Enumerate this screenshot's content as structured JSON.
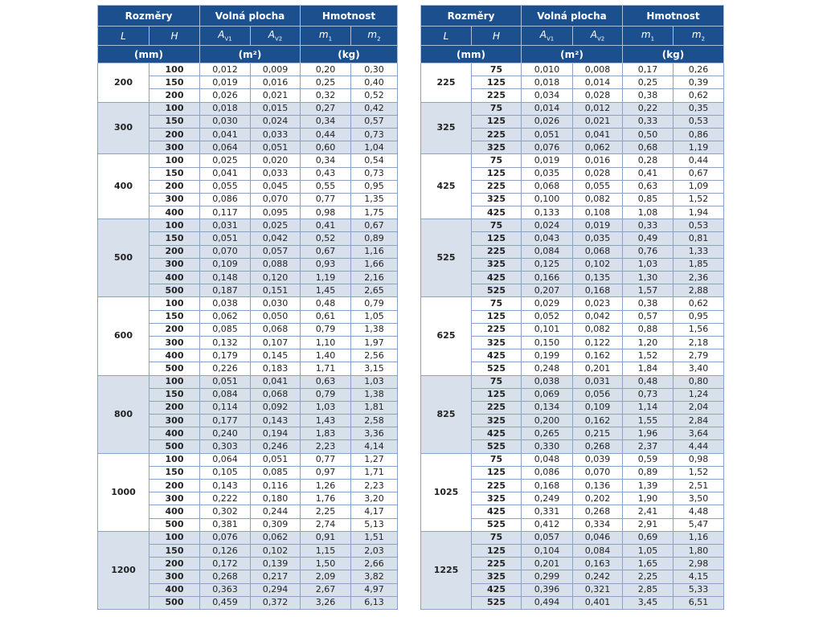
{
  "tables": [
    {
      "header": {
        "groups": [
          "Rozměry",
          "Volná plocha",
          "Hmotnost"
        ],
        "columns": [
          {
            "symbol": "L"
          },
          {
            "symbol": "H"
          },
          {
            "symbol": "A",
            "sub": "V1"
          },
          {
            "symbol": "A",
            "sub": "V2"
          },
          {
            "symbol": "m",
            "sub": "1"
          },
          {
            "symbol": "m",
            "sub": "2"
          }
        ],
        "units": [
          "(mm)",
          "(m²)",
          "(kg)"
        ]
      },
      "groups": [
        {
          "L": "200",
          "rows": [
            [
              "100",
              "0,012",
              "0,009",
              "0,20",
              "0,30"
            ],
            [
              "150",
              "0,019",
              "0,016",
              "0,25",
              "0,40"
            ],
            [
              "200",
              "0,026",
              "0,021",
              "0,32",
              "0,52"
            ]
          ]
        },
        {
          "L": "300",
          "rows": [
            [
              "100",
              "0,018",
              "0,015",
              "0,27",
              "0,42"
            ],
            [
              "150",
              "0,030",
              "0,024",
              "0,34",
              "0,57"
            ],
            [
              "200",
              "0,041",
              "0,033",
              "0,44",
              "0,73"
            ],
            [
              "300",
              "0,064",
              "0,051",
              "0,60",
              "1,04"
            ]
          ]
        },
        {
          "L": "400",
          "rows": [
            [
              "100",
              "0,025",
              "0,020",
              "0,34",
              "0,54"
            ],
            [
              "150",
              "0,041",
              "0,033",
              "0,43",
              "0,73"
            ],
            [
              "200",
              "0,055",
              "0,045",
              "0,55",
              "0,95"
            ],
            [
              "300",
              "0,086",
              "0,070",
              "0,77",
              "1,35"
            ],
            [
              "400",
              "0,117",
              "0,095",
              "0,98",
              "1,75"
            ]
          ]
        },
        {
          "L": "500",
          "rows": [
            [
              "100",
              "0,031",
              "0,025",
              "0,41",
              "0,67"
            ],
            [
              "150",
              "0,051",
              "0,042",
              "0,52",
              "0,89"
            ],
            [
              "200",
              "0,070",
              "0,057",
              "0,67",
              "1,16"
            ],
            [
              "300",
              "0,109",
              "0,088",
              "0,93",
              "1,66"
            ],
            [
              "400",
              "0,148",
              "0,120",
              "1,19",
              "2,16"
            ],
            [
              "500",
              "0,187",
              "0,151",
              "1,45",
              "2,65"
            ]
          ]
        },
        {
          "L": "600",
          "rows": [
            [
              "100",
              "0,038",
              "0,030",
              "0,48",
              "0,79"
            ],
            [
              "150",
              "0,062",
              "0,050",
              "0,61",
              "1,05"
            ],
            [
              "200",
              "0,085",
              "0,068",
              "0,79",
              "1,38"
            ],
            [
              "300",
              "0,132",
              "0,107",
              "1,10",
              "1,97"
            ],
            [
              "400",
              "0,179",
              "0,145",
              "1,40",
              "2,56"
            ],
            [
              "500",
              "0,226",
              "0,183",
              "1,71",
              "3,15"
            ]
          ]
        },
        {
          "L": "800",
          "rows": [
            [
              "100",
              "0,051",
              "0,041",
              "0,63",
              "1,03"
            ],
            [
              "150",
              "0,084",
              "0,068",
              "0,79",
              "1,38"
            ],
            [
              "200",
              "0,114",
              "0,092",
              "1,03",
              "1,81"
            ],
            [
              "300",
              "0,177",
              "0,143",
              "1,43",
              "2,58"
            ],
            [
              "400",
              "0,240",
              "0,194",
              "1,83",
              "3,36"
            ],
            [
              "500",
              "0,303",
              "0,246",
              "2,23",
              "4,14"
            ]
          ]
        },
        {
          "L": "1000",
          "rows": [
            [
              "100",
              "0,064",
              "0,051",
              "0,77",
              "1,27"
            ],
            [
              "150",
              "0,105",
              "0,085",
              "0,97",
              "1,71"
            ],
            [
              "200",
              "0,143",
              "0,116",
              "1,26",
              "2,23"
            ],
            [
              "300",
              "0,222",
              "0,180",
              "1,76",
              "3,20"
            ],
            [
              "400",
              "0,302",
              "0,244",
              "2,25",
              "4,17"
            ],
            [
              "500",
              "0,381",
              "0,309",
              "2,74",
              "5,13"
            ]
          ]
        },
        {
          "L": "1200",
          "rows": [
            [
              "100",
              "0,076",
              "0,062",
              "0,91",
              "1,51"
            ],
            [
              "150",
              "0,126",
              "0,102",
              "1,15",
              "2,03"
            ],
            [
              "200",
              "0,172",
              "0,139",
              "1,50",
              "2,66"
            ],
            [
              "300",
              "0,268",
              "0,217",
              "2,09",
              "3,82"
            ],
            [
              "400",
              "0,363",
              "0,294",
              "2,67",
              "4,97"
            ],
            [
              "500",
              "0,459",
              "0,372",
              "3,26",
              "6,13"
            ]
          ]
        }
      ]
    },
    {
      "header": {
        "groups": [
          "Rozměry",
          "Volná plocha",
          "Hmotnost"
        ],
        "columns": [
          {
            "symbol": "L"
          },
          {
            "symbol": "H"
          },
          {
            "symbol": "A",
            "sub": "V1"
          },
          {
            "symbol": "A",
            "sub": "V2"
          },
          {
            "symbol": "m",
            "sub": "1"
          },
          {
            "symbol": "m",
            "sub": "2"
          }
        ],
        "units": [
          "(mm)",
          "(m²)",
          "(kg)"
        ]
      },
      "groups": [
        {
          "L": "225",
          "rows": [
            [
              "75",
              "0,010",
              "0,008",
              "0,17",
              "0,26"
            ],
            [
              "125",
              "0,018",
              "0,014",
              "0,25",
              "0,39"
            ],
            [
              "225",
              "0,034",
              "0,028",
              "0,38",
              "0,62"
            ]
          ]
        },
        {
          "L": "325",
          "rows": [
            [
              "75",
              "0,014",
              "0,012",
              "0,22",
              "0,35"
            ],
            [
              "125",
              "0,026",
              "0,021",
              "0,33",
              "0,53"
            ],
            [
              "225",
              "0,051",
              "0,041",
              "0,50",
              "0,86"
            ],
            [
              "325",
              "0,076",
              "0,062",
              "0,68",
              "1,19"
            ]
          ]
        },
        {
          "L": "425",
          "rows": [
            [
              "75",
              "0,019",
              "0,016",
              "0,28",
              "0,44"
            ],
            [
              "125",
              "0,035",
              "0,028",
              "0,41",
              "0,67"
            ],
            [
              "225",
              "0,068",
              "0,055",
              "0,63",
              "1,09"
            ],
            [
              "325",
              "0,100",
              "0,082",
              "0,85",
              "1,52"
            ],
            [
              "425",
              "0,133",
              "0,108",
              "1,08",
              "1,94"
            ]
          ]
        },
        {
          "L": "525",
          "rows": [
            [
              "75",
              "0,024",
              "0,019",
              "0,33",
              "0,53"
            ],
            [
              "125",
              "0,043",
              "0,035",
              "0,49",
              "0,81"
            ],
            [
              "225",
              "0,084",
              "0,068",
              "0,76",
              "1,33"
            ],
            [
              "325",
              "0,125",
              "0,102",
              "1,03",
              "1,85"
            ],
            [
              "425",
              "0,166",
              "0,135",
              "1,30",
              "2,36"
            ],
            [
              "525",
              "0,207",
              "0,168",
              "1,57",
              "2,88"
            ]
          ]
        },
        {
          "L": "625",
          "rows": [
            [
              "75",
              "0,029",
              "0,023",
              "0,38",
              "0,62"
            ],
            [
              "125",
              "0,052",
              "0,042",
              "0,57",
              "0,95"
            ],
            [
              "225",
              "0,101",
              "0,082",
              "0,88",
              "1,56"
            ],
            [
              "325",
              "0,150",
              "0,122",
              "1,20",
              "2,18"
            ],
            [
              "425",
              "0,199",
              "0,162",
              "1,52",
              "2,79"
            ],
            [
              "525",
              "0,248",
              "0,201",
              "1,84",
              "3,40"
            ]
          ]
        },
        {
          "L": "825",
          "rows": [
            [
              "75",
              "0,038",
              "0,031",
              "0,48",
              "0,80"
            ],
            [
              "125",
              "0,069",
              "0,056",
              "0,73",
              "1,24"
            ],
            [
              "225",
              "0,134",
              "0,109",
              "1,14",
              "2,04"
            ],
            [
              "325",
              "0,200",
              "0,162",
              "1,55",
              "2,84"
            ],
            [
              "425",
              "0,265",
              "0,215",
              "1,96",
              "3,64"
            ],
            [
              "525",
              "0,330",
              "0,268",
              "2,37",
              "4,44"
            ]
          ]
        },
        {
          "L": "1025",
          "rows": [
            [
              "75",
              "0,048",
              "0,039",
              "0,59",
              "0,98"
            ],
            [
              "125",
              "0,086",
              "0,070",
              "0,89",
              "1,52"
            ],
            [
              "225",
              "0,168",
              "0,136",
              "1,39",
              "2,51"
            ],
            [
              "325",
              "0,249",
              "0,202",
              "1,90",
              "3,50"
            ],
            [
              "425",
              "0,331",
              "0,268",
              "2,41",
              "4,48"
            ],
            [
              "525",
              "0,412",
              "0,334",
              "2,91",
              "5,47"
            ]
          ]
        },
        {
          "L": "1225",
          "rows": [
            [
              "75",
              "0,057",
              "0,046",
              "0,69",
              "1,16"
            ],
            [
              "125",
              "0,104",
              "0,084",
              "1,05",
              "1,80"
            ],
            [
              "225",
              "0,201",
              "0,163",
              "1,65",
              "2,98"
            ],
            [
              "325",
              "0,299",
              "0,242",
              "2,25",
              "4,15"
            ],
            [
              "425",
              "0,396",
              "0,321",
              "2,85",
              "5,33"
            ],
            [
              "525",
              "0,494",
              "0,401",
              "3,45",
              "6,51"
            ]
          ]
        }
      ]
    }
  ]
}
